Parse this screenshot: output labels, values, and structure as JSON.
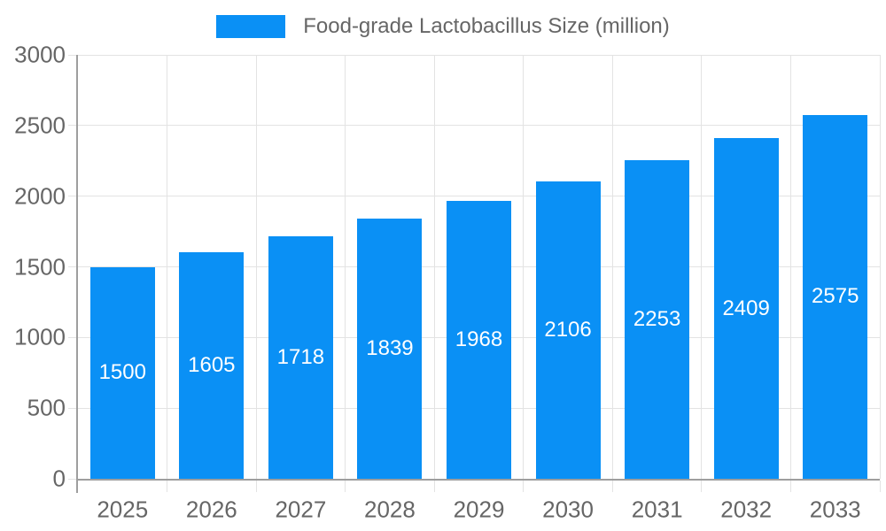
{
  "legend": {
    "label": "Food-grade Lactobacillus Size (million)"
  },
  "colors": {
    "bar": "#0a90f5",
    "grid": "#e3e3e3",
    "axis": "#9e9e9e",
    "tick_text": "#666666",
    "legend_text": "#666666",
    "value_text": "#ffffff",
    "background": "#ffffff"
  },
  "chart_data": {
    "type": "bar",
    "title": "Food-grade Lactobacillus Size (million)",
    "categories": [
      "2025",
      "2026",
      "2027",
      "2028",
      "2029",
      "2030",
      "2031",
      "2032",
      "2033"
    ],
    "values": [
      1500,
      1605,
      1718,
      1839,
      1968,
      2106,
      2253,
      2409,
      2575
    ],
    "series": [
      {
        "name": "Food-grade Lactobacillus Size (million)",
        "values": [
          1500,
          1605,
          1718,
          1839,
          1968,
          2106,
          2253,
          2409,
          2575
        ]
      }
    ],
    "yticks": [
      0,
      500,
      1000,
      1500,
      2000,
      2500,
      3000
    ],
    "ylim": [
      0,
      3000
    ],
    "xlabel": "",
    "ylabel": "",
    "grid": true,
    "legend_position": "top",
    "value_label_position": "inside-center"
  }
}
